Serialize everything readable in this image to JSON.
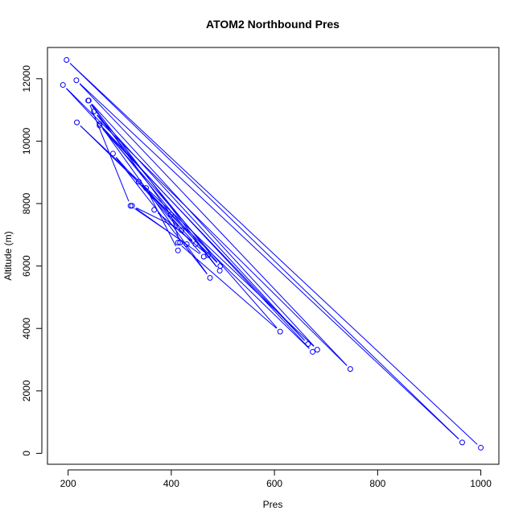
{
  "chart_data": {
    "type": "scatter",
    "title": "ATOM2 Northbound Pres",
    "xlabel": "Pres",
    "ylabel": "Altitude (m)",
    "xlim": [
      160,
      1035
    ],
    "ylim": [
      -350,
      13000
    ],
    "x_ticks": [
      200,
      400,
      600,
      800,
      1000
    ],
    "y_ticks": [
      0,
      2000,
      4000,
      6000,
      8000,
      10000,
      12000
    ],
    "grid": false,
    "legend": "none",
    "colors": {
      "series": "#0000ff",
      "frame": "#000000"
    },
    "series": [
      {
        "style": "points-and-lines",
        "x": [
          1000,
          197,
          964,
          216,
          747,
          190,
          674,
          217,
          683,
          240,
          494,
          261,
          475,
          287,
          463,
          324,
          420,
          351,
          413,
          417,
          399,
          239,
          321,
          430,
          413,
          611,
          261,
          665,
          250,
          495,
          337,
          447,
          367,
          471
        ],
        "y": [
          180,
          12600,
          350,
          11950,
          2700,
          11800,
          3250,
          10600,
          3320,
          11300,
          5850,
          10550,
          5620,
          9600,
          6300,
          7930,
          7150,
          8500,
          6500,
          6750,
          7650,
          11300,
          7930,
          6700,
          6750,
          3900,
          10500,
          3500,
          10950,
          6000,
          8700,
          6700,
          7800,
          6350
        ]
      }
    ]
  }
}
